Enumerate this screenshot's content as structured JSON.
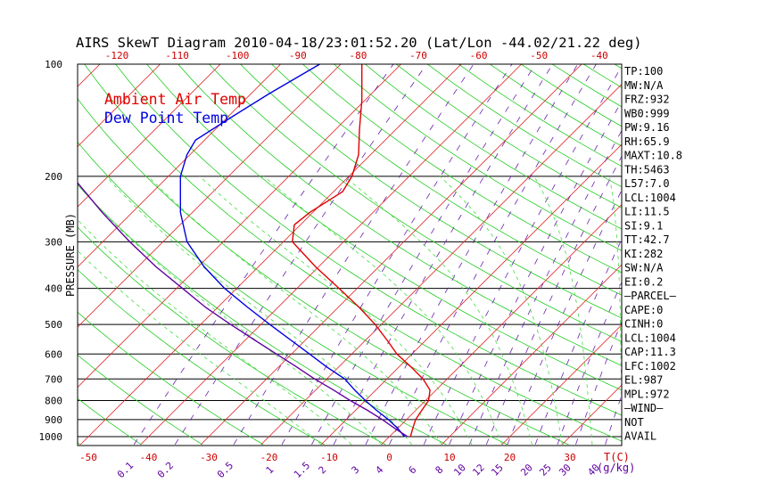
{
  "chart_data": {
    "type": "line",
    "title": "AIRS SkewT Diagram 2010-04-18/23:01:52.20 (Lat/Lon -44.02/21.22 deg)",
    "ylabel": "PRESSURE (MB)",
    "xlabel": "T(C)",
    "mixing_ratio_unit": "(g/kg)",
    "y_scale": "log",
    "ylim": [
      1050,
      100
    ],
    "xlim": [
      -50,
      40
    ],
    "pressure_ticks": [
      100,
      200,
      300,
      400,
      500,
      600,
      700,
      800,
      900,
      1000
    ],
    "top_temperature_ticks": [
      -120,
      -110,
      -100,
      -90,
      -80,
      -70,
      -60,
      -50,
      -40
    ],
    "bottom_temperature_ticks": [
      -50,
      -40,
      -30,
      -20,
      -10,
      0,
      10,
      20,
      30
    ],
    "mixing_ratio_labels": [
      "0.1",
      "0.2",
      "0.5",
      "1",
      "1.5",
      "2",
      "3",
      "4",
      "6",
      "8",
      "10",
      "12",
      "15",
      "20",
      "25",
      "30",
      "40"
    ],
    "legend": [
      "Ambient Air Temp",
      "Dew Point Temp"
    ],
    "series": [
      {
        "name": "Ambient Air Temp",
        "color": "#e00000",
        "points": [
          {
            "p": 1000,
            "t": 3.5
          },
          {
            "p": 950,
            "t": 2.5
          },
          {
            "p": 900,
            "t": 1.5
          },
          {
            "p": 850,
            "t": 1.0
          },
          {
            "p": 800,
            "t": 0.5
          },
          {
            "p": 750,
            "t": -1.0
          },
          {
            "p": 700,
            "t": -4.0
          },
          {
            "p": 650,
            "t": -8.0
          },
          {
            "p": 600,
            "t": -12.5
          },
          {
            "p": 550,
            "t": -16.5
          },
          {
            "p": 500,
            "t": -21.0
          },
          {
            "p": 450,
            "t": -26.5
          },
          {
            "p": 400,
            "t": -33.0
          },
          {
            "p": 350,
            "t": -40.5
          },
          {
            "p": 300,
            "t": -48.5
          },
          {
            "p": 270,
            "t": -51.0
          },
          {
            "p": 250,
            "t": -50.5
          },
          {
            "p": 220,
            "t": -48.5
          },
          {
            "p": 200,
            "t": -49.5
          },
          {
            "p": 175,
            "t": -52.0
          },
          {
            "p": 150,
            "t": -56.0
          },
          {
            "p": 125,
            "t": -60.5
          },
          {
            "p": 100,
            "t": -66.5
          }
        ]
      },
      {
        "name": "Dew Point Temp",
        "color": "#0000e0",
        "points": [
          {
            "p": 1000,
            "t": 2.5
          },
          {
            "p": 950,
            "t": 0.0
          },
          {
            "p": 900,
            "t": -3.0
          },
          {
            "p": 850,
            "t": -6.5
          },
          {
            "p": 800,
            "t": -10.0
          },
          {
            "p": 750,
            "t": -13.5
          },
          {
            "p": 700,
            "t": -17.0
          },
          {
            "p": 650,
            "t": -22.0
          },
          {
            "p": 600,
            "t": -27.0
          },
          {
            "p": 550,
            "t": -32.5
          },
          {
            "p": 500,
            "t": -38.5
          },
          {
            "p": 450,
            "t": -45.0
          },
          {
            "p": 400,
            "t": -52.0
          },
          {
            "p": 350,
            "t": -59.0
          },
          {
            "p": 300,
            "t": -66.0
          },
          {
            "p": 250,
            "t": -72.0
          },
          {
            "p": 200,
            "t": -78.0
          },
          {
            "p": 175,
            "t": -80.5
          },
          {
            "p": 160,
            "t": -81.5
          },
          {
            "p": 140,
            "t": -79.5
          },
          {
            "p": 120,
            "t": -77.0
          },
          {
            "p": 100,
            "t": -73.5
          }
        ]
      },
      {
        "name": "",
        "color": "#6000a0",
        "points": [
          {
            "p": 1000,
            "t": 3.0
          },
          {
            "p": 950,
            "t": -0.5
          },
          {
            "p": 900,
            "t": -4.0
          },
          {
            "p": 850,
            "t": -8.0
          },
          {
            "p": 800,
            "t": -12.5
          },
          {
            "p": 750,
            "t": -17.0
          },
          {
            "p": 700,
            "t": -22.0
          },
          {
            "p": 650,
            "t": -27.0
          },
          {
            "p": 600,
            "t": -32.5
          },
          {
            "p": 550,
            "t": -38.5
          },
          {
            "p": 500,
            "t": -45.0
          },
          {
            "p": 450,
            "t": -52.0
          },
          {
            "p": 400,
            "t": -59.0
          },
          {
            "p": 350,
            "t": -67.0
          },
          {
            "p": 300,
            "t": -75.5
          },
          {
            "p": 250,
            "t": -85.0
          },
          {
            "p": 200,
            "t": -96.0
          },
          {
            "p": 150,
            "t": -109.0
          },
          {
            "p": 100,
            "t": -127.0
          }
        ]
      }
    ],
    "indices": [
      "TP:100",
      "MW:N/A",
      "FRZ:932",
      "WB0:999",
      "PW:9.16",
      "RH:65.9",
      "MAXT:10.8",
      "TH:5463",
      "L57:7.0",
      "LCL:1004",
      "LI:11.5",
      "SI:9.1",
      "TT:42.7",
      "KI:282",
      "SW:N/A",
      "EI:0.2",
      "—PARCEL—",
      "CAPE:0",
      "CINH:0",
      "LCL:1004",
      "CAP:11.3",
      "LFC:1002",
      "EL:987",
      "MPL:972",
      "—WIND—",
      "NOT",
      "AVAIL"
    ]
  }
}
